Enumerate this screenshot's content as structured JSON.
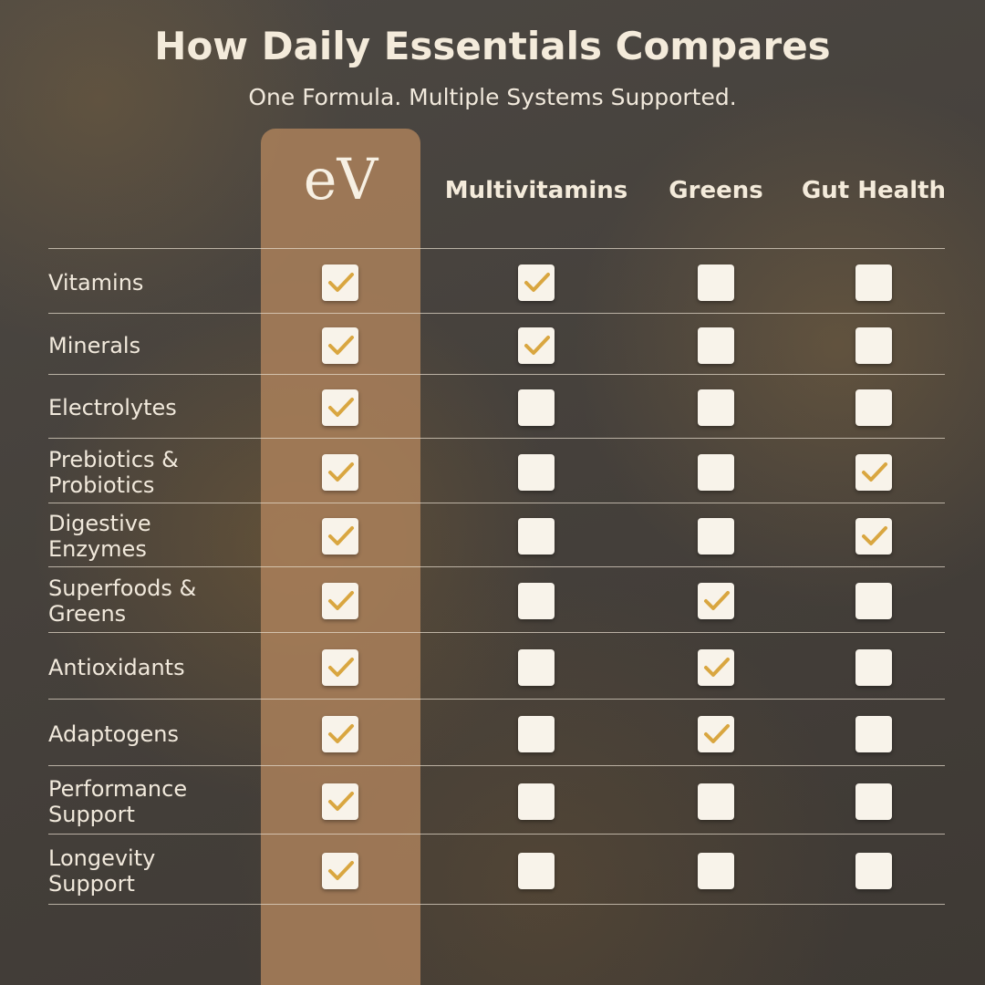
{
  "header": {
    "title": "How Daily Essentials Compares",
    "subtitle": "One Formula. Multiple Systems Supported."
  },
  "table": {
    "logo": "eV",
    "columns": [
      "Multivitamins",
      "Greens",
      "Gut Health"
    ],
    "rows": [
      {
        "label": "Vitamins",
        "checks": [
          true,
          true,
          false,
          false
        ]
      },
      {
        "label": "Minerals",
        "checks": [
          true,
          true,
          false,
          false
        ]
      },
      {
        "label": "Electrolytes",
        "checks": [
          true,
          false,
          false,
          false
        ]
      },
      {
        "label": "Prebiotics &\nProbiotics",
        "checks": [
          true,
          false,
          false,
          true
        ]
      },
      {
        "label": "Digestive\nEnzymes",
        "checks": [
          true,
          false,
          false,
          true
        ]
      },
      {
        "label": "Superfoods &\nGreens",
        "checks": [
          true,
          false,
          true,
          false
        ]
      },
      {
        "label": "Antioxidants",
        "checks": [
          true,
          false,
          true,
          false
        ]
      },
      {
        "label": "Adaptogens",
        "checks": [
          true,
          false,
          true,
          false
        ]
      },
      {
        "label": "Performance\nSupport",
        "checks": [
          true,
          false,
          false,
          false
        ]
      },
      {
        "label": "Longevity\nSupport",
        "checks": [
          true,
          false,
          false,
          false
        ]
      }
    ]
  }
}
